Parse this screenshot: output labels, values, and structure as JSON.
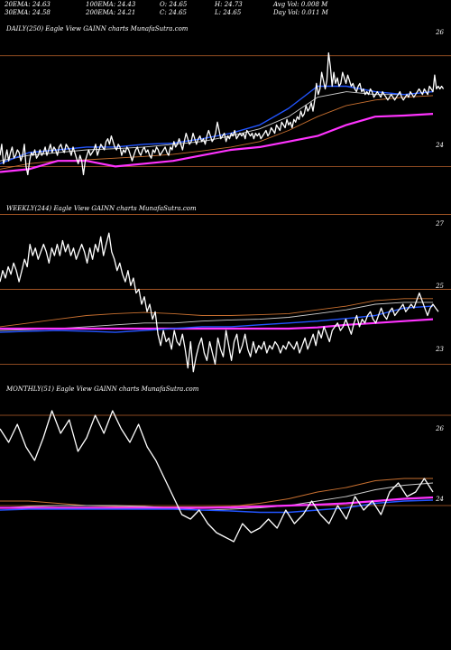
{
  "header": {
    "row1": [
      "20EMA: 24.63",
      "100EMA: 24.43",
      "O: 24.65",
      "H: 24.73",
      "Avg Vol: 0.008  M"
    ],
    "row2": [
      "30EMA: 24.58",
      "200EMA: 24.21",
      "C: 24.65",
      "L: 24.65",
      "Day Vol: 0.011 M"
    ]
  },
  "colors": {
    "background": "#000000",
    "price": "#ffffff",
    "ema_blue": "#2255ff",
    "ema_magenta": "#ff33ff",
    "gridline": "#b8602a",
    "ema_grey": "#cccccc",
    "ema_orange": "#c87030"
  },
  "chart_data": [
    {
      "type": "line",
      "title": "DAILY(250) Eagle  View  GAINN  charts MunafaSutra.com",
      "tick_labels": [
        "26",
        "24"
      ],
      "ylim": [
        23.5,
        26.6
      ],
      "n": 250,
      "series": [
        {
          "role": "price",
          "values": [
            24.2,
            24.4,
            24.05,
            24.15,
            24.3,
            24.1,
            24.25,
            24.35,
            24.15,
            24.2,
            24.3,
            24.25,
            24.1,
            24.2,
            24.4,
            24.0,
            23.85,
            24.1,
            24.25,
            24.2,
            24.3,
            24.15,
            24.2,
            24.3,
            24.2,
            24.25,
            24.35,
            24.2,
            24.3,
            24.4,
            24.25,
            24.35,
            24.3,
            24.2,
            24.35,
            24.4,
            24.3,
            24.25,
            24.4,
            24.35,
            24.3,
            24.2,
            24.35,
            24.25,
            24.15,
            24.05,
            24.2,
            24.1,
            23.85,
            24.1,
            24.2,
            24.3,
            24.2,
            24.25,
            24.3,
            24.4,
            24.2,
            24.3,
            24.4,
            24.35,
            24.3,
            24.45,
            24.5,
            24.4,
            24.55,
            24.45,
            24.35,
            24.3,
            24.4,
            24.35,
            24.2,
            24.3,
            24.25,
            24.35,
            24.3,
            24.2,
            24.1,
            24.2,
            24.3,
            24.35,
            24.25,
            24.2,
            24.3,
            24.35,
            24.25,
            24.3,
            24.2,
            24.15,
            24.3,
            24.25,
            24.35,
            24.3,
            24.2,
            24.25,
            24.3,
            24.35,
            24.25,
            24.2,
            24.35,
            24.3,
            24.45,
            24.35,
            24.4,
            24.5,
            24.4,
            24.3,
            24.45,
            24.6,
            24.5,
            24.4,
            24.45,
            24.6,
            24.5,
            24.4,
            24.5,
            24.55,
            24.45,
            24.5,
            24.4,
            24.55,
            24.65,
            24.55,
            24.45,
            24.5,
            24.6,
            24.8,
            24.65,
            24.5,
            24.55,
            24.6,
            24.45,
            24.55,
            24.5,
            24.6,
            24.55,
            24.65,
            24.5,
            24.55,
            24.6,
            24.55,
            24.6,
            24.5,
            24.65,
            24.6,
            24.55,
            24.6,
            24.5,
            24.6,
            24.55,
            24.6,
            24.5,
            24.55,
            24.6,
            24.65,
            24.55,
            24.6,
            24.7,
            24.65,
            24.6,
            24.75,
            24.7,
            24.65,
            24.8,
            24.75,
            24.7,
            24.85,
            24.75,
            24.8,
            24.7,
            24.85,
            24.8,
            24.9,
            24.85,
            25.0,
            24.9,
            24.95,
            25.1,
            25.0,
            25.05,
            25.15,
            25.0,
            25.2,
            25.5,
            25.3,
            25.4,
            25.7,
            25.55,
            25.4,
            25.55,
            26.05,
            25.8,
            25.45,
            25.7,
            25.5,
            25.6,
            25.45,
            25.5,
            25.7,
            25.6,
            25.5,
            25.65,
            25.55,
            25.45,
            25.5,
            25.4,
            25.35,
            25.45,
            25.5,
            25.35,
            25.4,
            25.3,
            25.35,
            25.3,
            25.4,
            25.35,
            25.25,
            25.3,
            25.35,
            25.3,
            25.25,
            25.35,
            25.3,
            25.25,
            25.2,
            25.25,
            25.3,
            25.25,
            25.2,
            25.25,
            25.3,
            25.35,
            25.25,
            25.2,
            25.25,
            25.3,
            25.25,
            25.35,
            25.3,
            25.25,
            25.3,
            25.35,
            25.4,
            25.35,
            25.3,
            25.4,
            25.35,
            25.3,
            25.45,
            25.4,
            25.35,
            25.65,
            25.4,
            25.45,
            25.4,
            25.45,
            25.4
          ]
        },
        {
          "role": "ema_magenta",
          "values": [
            23.9,
            23.95,
            24.1,
            24.1,
            24.0,
            24.05,
            24.1,
            24.2,
            24.3,
            24.35,
            24.45,
            24.55,
            24.75,
            24.9,
            24.92,
            24.95
          ]
        },
        {
          "role": "ema_blue",
          "values": [
            24.05,
            24.25,
            24.3,
            24.35,
            24.35,
            24.4,
            24.42,
            24.5,
            24.6,
            24.75,
            25.05,
            25.45,
            25.45,
            25.35,
            25.3,
            25.35
          ]
        },
        {
          "role": "ema_grey",
          "values": [
            24.1,
            24.2,
            24.25,
            24.3,
            24.32,
            24.35,
            24.4,
            24.45,
            24.55,
            24.68,
            24.9,
            25.25,
            25.35,
            25.3,
            25.3,
            25.35
          ]
        },
        {
          "role": "ema_orange",
          "values": [
            23.95,
            24.05,
            24.1,
            24.12,
            24.15,
            24.18,
            24.22,
            24.28,
            24.35,
            24.45,
            24.65,
            24.9,
            25.1,
            25.2,
            25.25,
            25.28
          ]
        }
      ]
    },
    {
      "type": "line",
      "title": "WEEKLY(244) Eagle  View  GAINN  charts MunafaSutra.com",
      "tick_labels": [
        "27",
        "25",
        "23"
      ],
      "ylim": [
        22.6,
        27.3
      ],
      "n": 160,
      "series": [
        {
          "role": "price",
          "values": [
            25.2,
            25.5,
            25.3,
            25.6,
            25.4,
            25.7,
            25.5,
            25.2,
            25.5,
            25.8,
            25.6,
            26.2,
            25.9,
            26.1,
            25.8,
            26.0,
            26.2,
            26.0,
            25.7,
            26.1,
            25.9,
            26.2,
            25.9,
            26.3,
            26.0,
            26.2,
            25.9,
            26.1,
            25.8,
            26.0,
            26.2,
            26.0,
            25.7,
            26.1,
            25.8,
            26.2,
            26.0,
            26.4,
            25.9,
            26.2,
            26.5,
            26.0,
            25.8,
            25.5,
            25.7,
            25.4,
            25.2,
            25.5,
            25.1,
            25.3,
            24.9,
            25.0,
            24.6,
            24.8,
            24.4,
            24.6,
            24.2,
            24.4,
            23.8,
            23.5,
            23.9,
            23.6,
            23.7,
            23.4,
            23.9,
            23.6,
            23.5,
            23.8,
            23.4,
            22.9,
            23.6,
            22.8,
            23.2,
            23.5,
            23.7,
            23.3,
            23.1,
            23.6,
            23.3,
            23.0,
            23.7,
            23.4,
            23.2,
            23.9,
            23.5,
            23.1,
            23.6,
            23.8,
            23.3,
            23.5,
            23.8,
            23.4,
            23.2,
            23.6,
            23.3,
            23.5,
            23.4,
            23.6,
            23.3,
            23.5,
            23.4,
            23.6,
            23.5,
            23.3,
            23.5,
            23.4,
            23.6,
            23.5,
            23.4,
            23.6,
            23.3,
            23.5,
            23.7,
            23.4,
            23.6,
            23.8,
            23.5,
            23.9,
            23.7,
            24.0,
            23.8,
            23.6,
            23.9,
            24.0,
            24.1,
            23.9,
            24.0,
            24.2,
            24.0,
            23.8,
            24.1,
            24.3,
            24.0,
            24.2,
            24.1,
            24.3,
            24.4,
            24.2,
            24.1,
            24.3,
            24.5,
            24.3,
            24.2,
            24.4,
            24.5,
            24.3,
            24.4,
            24.5,
            24.6,
            24.4,
            24.5,
            24.6,
            24.5,
            24.7,
            24.9,
            24.7,
            24.5,
            24.3,
            24.5,
            24.6,
            24.5,
            24.4
          ]
        },
        {
          "role": "ema_magenta",
          "values": [
            23.95,
            23.95,
            23.95,
            23.95,
            23.95,
            23.95,
            23.95,
            23.95,
            23.95,
            23.95,
            23.95,
            23.98,
            24.05,
            24.1,
            24.15,
            24.2
          ]
        },
        {
          "role": "ema_blue",
          "values": [
            23.85,
            23.88,
            23.9,
            23.88,
            23.85,
            23.9,
            23.95,
            24.0,
            24.0,
            24.05,
            24.1,
            24.15,
            24.22,
            24.3,
            24.5,
            24.55
          ]
        },
        {
          "role": "ema_grey",
          "values": [
            23.9,
            23.92,
            23.95,
            24.0,
            24.05,
            24.1,
            24.1,
            24.15,
            24.18,
            24.2,
            24.25,
            24.35,
            24.45,
            24.6,
            24.65,
            24.65
          ]
        },
        {
          "role": "ema_orange",
          "values": [
            24.0,
            24.1,
            24.2,
            24.3,
            24.35,
            24.38,
            24.35,
            24.3,
            24.3,
            24.32,
            24.35,
            24.45,
            24.55,
            24.7,
            24.75,
            24.75
          ]
        }
      ]
    },
    {
      "type": "line",
      "title": "MONTHLY(51) Eagle  View  GAINN  charts MunafaSutra.com",
      "tick_labels": [
        "26",
        "24"
      ],
      "ylim": [
        22.7,
        26.7
      ],
      "n": 51,
      "series": [
        {
          "role": "price",
          "values": [
            25.7,
            25.4,
            25.8,
            25.3,
            25.0,
            25.5,
            26.1,
            25.6,
            25.9,
            25.2,
            25.5,
            26.0,
            25.6,
            26.1,
            25.7,
            25.4,
            25.8,
            25.3,
            25.0,
            24.6,
            24.2,
            23.8,
            23.7,
            23.9,
            23.6,
            23.4,
            23.3,
            23.2,
            23.6,
            23.4,
            23.5,
            23.7,
            23.5,
            23.9,
            23.6,
            23.8,
            24.1,
            23.8,
            23.6,
            24.0,
            23.7,
            24.2,
            23.9,
            24.1,
            23.8,
            24.3,
            24.5,
            24.2,
            24.3,
            24.6,
            24.3
          ]
        },
        {
          "role": "ema_magenta",
          "values": [
            23.95,
            23.95,
            23.95,
            23.95,
            23.95,
            23.95,
            23.95,
            23.95,
            23.96,
            23.98,
            24.0,
            24.02,
            24.05,
            24.1,
            24.15,
            24.18
          ]
        },
        {
          "role": "ema_blue",
          "values": [
            23.9,
            23.92,
            23.92,
            23.92,
            23.92,
            23.92,
            23.92,
            23.9,
            23.88,
            23.85,
            23.85,
            23.9,
            23.95,
            24.05,
            24.1,
            24.12
          ]
        },
        {
          "role": "ema_grey",
          "values": [
            23.95,
            23.98,
            24.0,
            24.0,
            24.0,
            23.98,
            23.95,
            23.9,
            23.92,
            23.95,
            24.0,
            24.1,
            24.2,
            24.35,
            24.45,
            24.5
          ]
        },
        {
          "role": "ema_orange",
          "values": [
            24.1,
            24.1,
            24.05,
            24.0,
            23.98,
            23.97,
            23.97,
            23.97,
            23.98,
            24.05,
            24.15,
            24.3,
            24.4,
            24.55,
            24.6,
            24.6
          ]
        }
      ]
    }
  ]
}
